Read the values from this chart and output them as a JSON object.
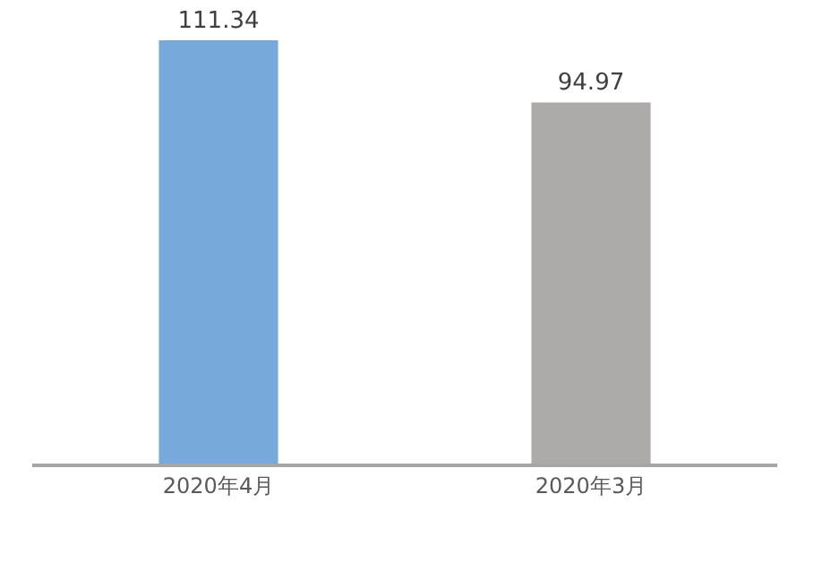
{
  "chart_data": {
    "type": "bar",
    "categories": [
      "2020年4月",
      "2020年3月"
    ],
    "values": [
      111.34,
      94.97
    ],
    "colors": [
      "#77aadb",
      "#acabaa"
    ],
    "data_labels": true
  }
}
